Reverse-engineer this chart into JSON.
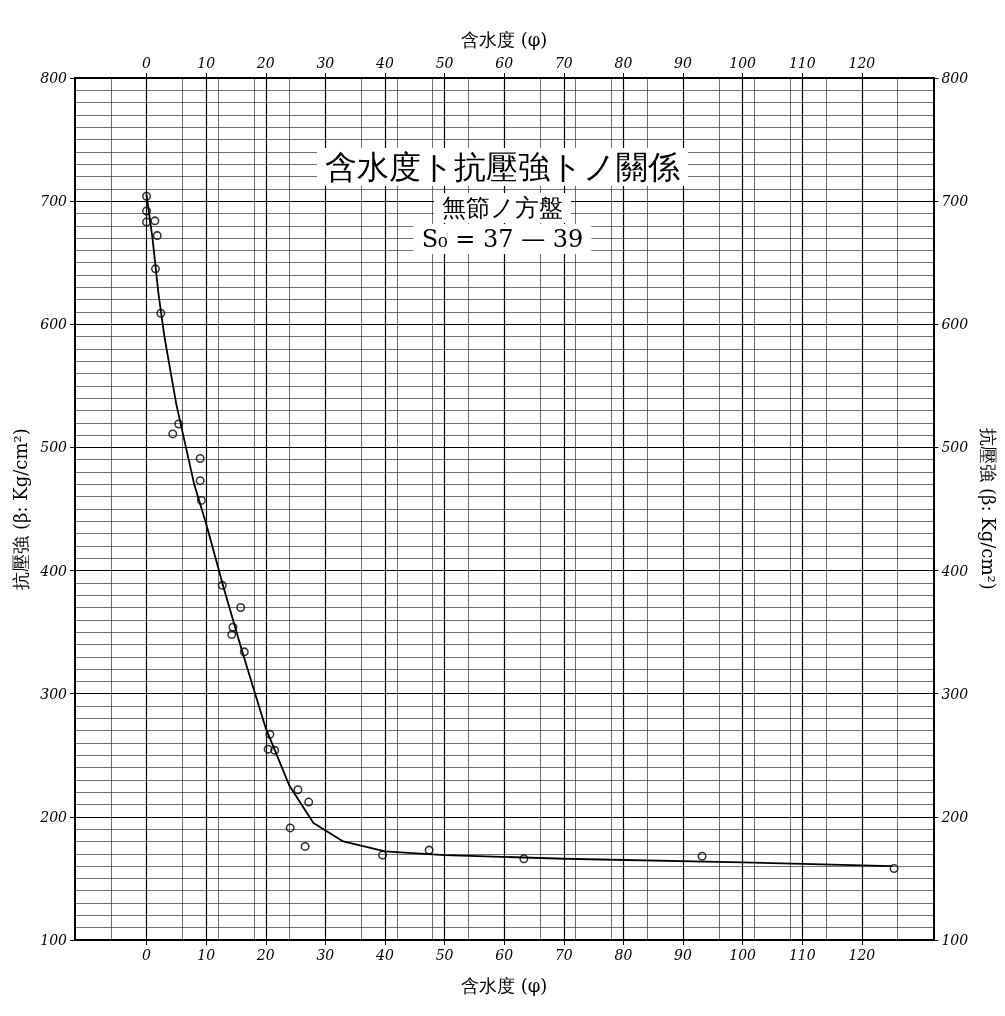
{
  "chart_data": {
    "type": "scatter",
    "title": "含水度ト抗壓強トノ關係",
    "subtitle": "無節ノ方盤",
    "annotations": [
      "S₀ = 37 — 39"
    ],
    "xlabel": "含水度 (φ)",
    "x2label": "含水度 (φ)",
    "ylabel": "抗壓強 (β: Kg/cm²)",
    "y2label": "抗壓強 (β: Kg/cm²)",
    "xlim": [
      -12,
      132
    ],
    "xticks": [
      0,
      10,
      20,
      30,
      40,
      50,
      60,
      70,
      80,
      90,
      100,
      110,
      120
    ],
    "x2lim": [
      -12,
      132
    ],
    "x2ticks": [
      0,
      10,
      20,
      30,
      40,
      50,
      60,
      70,
      80,
      90,
      100,
      110,
      120
    ],
    "ylim": [
      100,
      800
    ],
    "yticks": [
      100,
      200,
      300,
      400,
      500,
      600,
      700,
      800
    ],
    "y2lim": [
      100,
      800
    ],
    "y2ticks": [
      100,
      200,
      300,
      400,
      500,
      600,
      700,
      800
    ],
    "grid": true,
    "series": [
      {
        "type": "scatter",
        "marker": "circle",
        "color": "#000000",
        "x": [
          0,
          0,
          0,
          1.4,
          1.8,
          1.5,
          2.4,
          5.4,
          4.4,
          9.0,
          9.0,
          9.2,
          12.7,
          15.8,
          14.5,
          14.3,
          16.4,
          20.7,
          20.4,
          21.5,
          25.4,
          27.2,
          24.1,
          26.6,
          39.6,
          47.4,
          63.3,
          93.2,
          125.4
        ],
        "values": [
          704,
          692,
          683,
          684,
          672,
          645,
          609,
          519,
          511,
          491,
          473,
          457,
          388,
          370,
          354,
          348,
          334,
          267,
          255,
          254,
          222,
          212,
          191,
          176,
          169,
          173,
          166,
          168,
          158
        ]
      },
      {
        "type": "line",
        "marker": "none",
        "line_style": "solid",
        "color": "#000000",
        "x": [
          0,
          1,
          2,
          3,
          5,
          8,
          10,
          13,
          16,
          20,
          24,
          28,
          33,
          40,
          50,
          70,
          100,
          125
        ],
        "values": [
          705,
          670,
          625,
          590,
          535,
          470,
          438,
          385,
          335,
          272,
          225,
          195,
          180,
          172,
          169,
          166,
          163,
          160
        ]
      }
    ]
  }
}
